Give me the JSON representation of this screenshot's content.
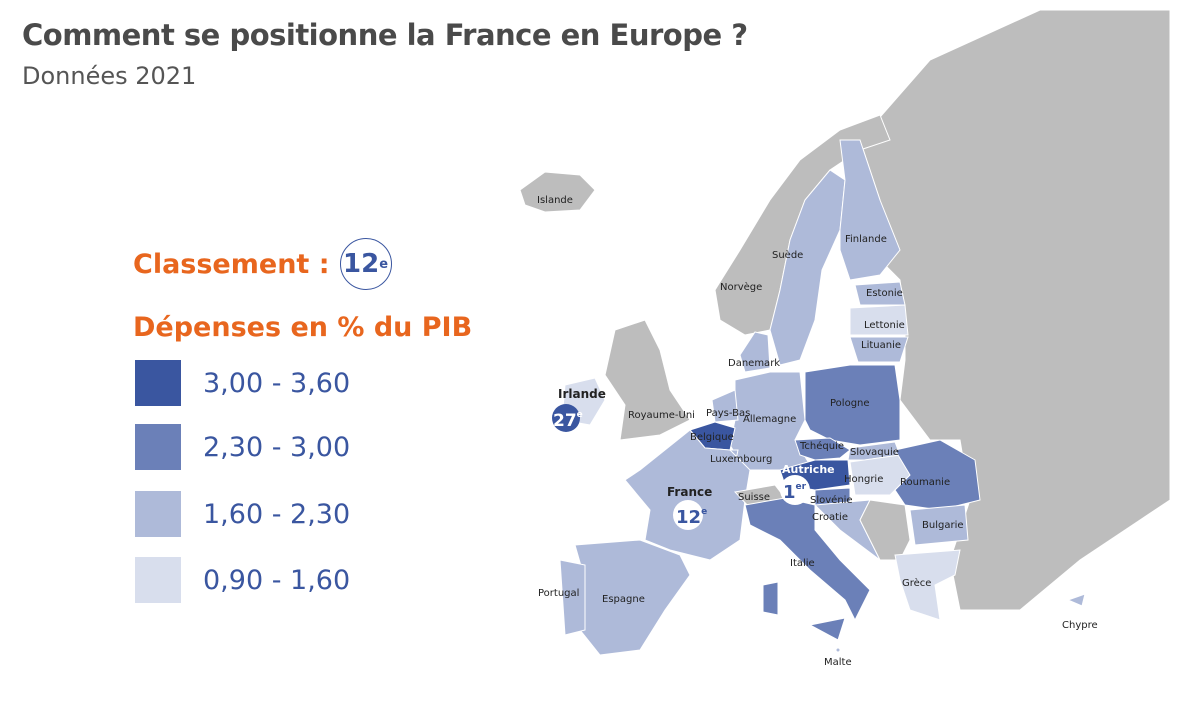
{
  "header": {
    "title": "Comment se positionne la France en Europe ?",
    "subtitle": "Données 2021"
  },
  "ranking": {
    "label": "Classement :",
    "value": "12",
    "suffix": "e"
  },
  "legend": {
    "title": "Dépenses en % du PIB",
    "items": [
      {
        "label": "3,00 - 3,60",
        "color": "#3a56a0"
      },
      {
        "label": "2,30 - 3,00",
        "color": "#6b80b8"
      },
      {
        "label": "1,60 - 2,30",
        "color": "#aebad9"
      },
      {
        "label": "0,90 - 1,60",
        "color": "#d8deed"
      }
    ]
  },
  "colors": {
    "accent": "#e8661e",
    "no_data": "#bdbdbd",
    "sea": "#ffffff"
  },
  "map": {
    "countries": {
      "islande": {
        "label": "Islande",
        "class": "none"
      },
      "norvege": {
        "label": "Norvège",
        "class": "none"
      },
      "suede": {
        "label": "Suède",
        "class": "1,60 - 2,30"
      },
      "finlande": {
        "label": "Finlande",
        "class": "1,60 - 2,30"
      },
      "estonie": {
        "label": "Estonie",
        "class": "1,60 - 2,30"
      },
      "lettonie": {
        "label": "Lettonie",
        "class": "0,90 - 1,60"
      },
      "lituanie": {
        "label": "Lituanie",
        "class": "1,60 - 2,30"
      },
      "danemark": {
        "label": "Danemark",
        "class": "1,60 - 2,30"
      },
      "irlande": {
        "label": "Irlande",
        "class": "0,90 - 1,60"
      },
      "royaume_uni": {
        "label": "Royaume-Uni",
        "class": "none"
      },
      "pays_bas": {
        "label": "Pays-Bas",
        "class": "1,60 - 2,30"
      },
      "belgique": {
        "label": "Belgique",
        "class": "3,00 - 3,60"
      },
      "luxembourg": {
        "label": "Luxembourg",
        "class": "1,60 - 2,30"
      },
      "allemagne": {
        "label": "Allemagne",
        "class": "1,60 - 2,30"
      },
      "pologne": {
        "label": "Pologne",
        "class": "2,30 - 3,00"
      },
      "tchequie": {
        "label": "Tchéquie",
        "class": "2,30 - 3,00"
      },
      "slovaquie": {
        "label": "Slovaquie",
        "class": "1,60 - 2,30"
      },
      "autriche": {
        "label": "Autriche",
        "class": "3,00 - 3,60"
      },
      "hongrie": {
        "label": "Hongrie",
        "class": "0,90 - 1,60"
      },
      "roumanie": {
        "label": "Roumanie",
        "class": "2,30 - 3,00"
      },
      "france": {
        "label": "France",
        "class": "1,60 - 2,30"
      },
      "suisse": {
        "label": "Suisse",
        "class": "none"
      },
      "slovenie": {
        "label": "Slovénie",
        "class": "2,30 - 3,00"
      },
      "croatie": {
        "label": "Croatie",
        "class": "1,60 - 2,30"
      },
      "bulgarie": {
        "label": "Bulgarie",
        "class": "1,60 - 2,30"
      },
      "italie": {
        "label": "Italie",
        "class": "2,30 - 3,00"
      },
      "grece": {
        "label": "Grèce",
        "class": "0,90 - 1,60"
      },
      "espagne": {
        "label": "Espagne",
        "class": "1,60 - 2,30"
      },
      "portugal": {
        "label": "Portugal",
        "class": "1,60 - 2,30"
      },
      "malte": {
        "label": "Malte",
        "class": "1,60 - 2,30"
      },
      "chypre": {
        "label": "Chypre",
        "class": "1,60 - 2,30"
      }
    },
    "badges": {
      "france": {
        "name": "France",
        "rank": "12",
        "suffix": "e"
      },
      "irlande": {
        "name": "Irlande",
        "rank": "27",
        "suffix": "e"
      },
      "autriche": {
        "name": "Autriche",
        "rank": "1",
        "suffix": "er"
      }
    }
  }
}
